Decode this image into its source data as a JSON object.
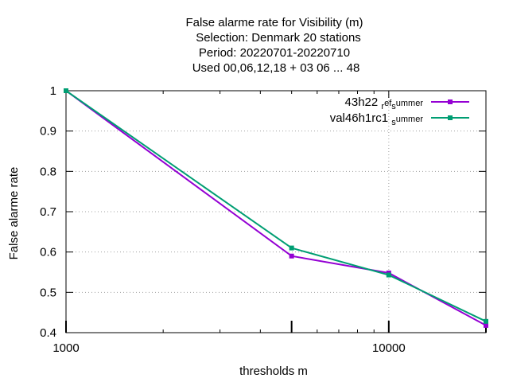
{
  "chart_data": {
    "type": "line",
    "title_lines": [
      "False alarme rate  for Visibility (m)",
      "Selection: Denmark     20 stations",
      "Period: 20220701-20220710",
      "Used  00,06,12,18  + 03 06 ... 48"
    ],
    "xlabel": "thresholds m",
    "ylabel": "False alarme rate",
    "x_scale": "log",
    "xlim": [
      1000,
      20000
    ],
    "ylim": [
      0.4,
      1.0
    ],
    "x_ticks": [
      {
        "value": 1000,
        "label": "1000"
      },
      {
        "value": 10000,
        "label": "10000"
      }
    ],
    "y_ticks": [
      {
        "value": 0.4,
        "label": "0.4"
      },
      {
        "value": 0.5,
        "label": "0.5"
      },
      {
        "value": 0.6,
        "label": "0.6"
      },
      {
        "value": 0.7,
        "label": "0.7"
      },
      {
        "value": 0.8,
        "label": "0.8"
      },
      {
        "value": 0.9,
        "label": "0.9"
      },
      {
        "value": 1.0,
        "label": "1"
      }
    ],
    "grid": true,
    "legend_position": "top-right",
    "series": [
      {
        "name": "43h22 ref summer",
        "legend_parts": {
          "pre": "43h22 ",
          "sub1": "r",
          "mid": "ef",
          "sub2": "s",
          "post": "ummer"
        },
        "color": "#9400d3",
        "x": [
          1000,
          5000,
          10000,
          20000
        ],
        "y": [
          1.0,
          0.59,
          0.548,
          0.418
        ]
      },
      {
        "name": "val46h1rc1 summer",
        "legend_parts": {
          "pre": "val46h1rc1 ",
          "sub1": "",
          "mid": "",
          "sub2": "s",
          "post": "ummer"
        },
        "color": "#009e73",
        "x": [
          1000,
          5000,
          10000,
          20000
        ],
        "y": [
          1.0,
          0.61,
          0.543,
          0.428
        ]
      }
    ],
    "observation_ticks_x": [
      1000,
      5000,
      10000,
      20000
    ]
  }
}
